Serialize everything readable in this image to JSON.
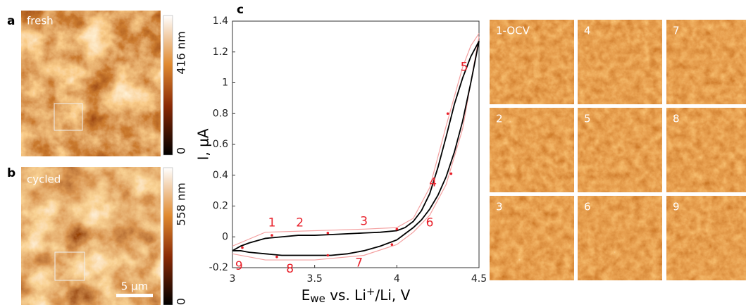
{
  "panels": {
    "a": {
      "label": "a",
      "image_label": "fresh",
      "colorbar_top": "416 nm",
      "colorbar_bottom": "0"
    },
    "b": {
      "label": "b",
      "image_label": "cycled",
      "colorbar_top": "558 nm",
      "colorbar_bottom": "0",
      "scale_bar": "5 μm"
    }
  },
  "chart_data": {
    "type": "line",
    "panel_label": "c",
    "xlabel": [
      "E",
      "we",
      " vs. Li",
      "+",
      "/Li, V"
    ],
    "ylabel": "I, μA",
    "xlim": [
      3,
      4.5
    ],
    "ylim": [
      -0.2,
      1.4
    ],
    "xticks": [
      3,
      3.5,
      4,
      4.5
    ],
    "yticks": [
      -0.2,
      0,
      0.2,
      0.4,
      0.6,
      0.8,
      1,
      1.2,
      1.4
    ],
    "series": [
      {
        "color": "#f4a0a0",
        "x": [
          3,
          3.2,
          3.5,
          3.8,
          4.0,
          4.1,
          4.2,
          4.3,
          4.4,
          4.45,
          4.5
        ],
        "values": [
          -0.06,
          0.03,
          0.04,
          0.05,
          0.06,
          0.12,
          0.32,
          0.72,
          1.1,
          1.24,
          1.32
        ]
      },
      {
        "color": "#f4a0a0",
        "x": [
          4.5,
          4.45,
          4.4,
          4.3,
          4.2,
          4.1,
          4.0,
          3.8,
          3.5,
          3.2,
          3.0
        ],
        "values": [
          1.3,
          1.0,
          0.7,
          0.34,
          0.14,
          0.03,
          -0.05,
          -0.12,
          -0.15,
          -0.15,
          -0.11
        ]
      },
      {
        "color": "#000000",
        "x": [
          3,
          3.05,
          3.1,
          3.2,
          3.3,
          3.4,
          3.5,
          3.6,
          3.7,
          3.8,
          3.9,
          4.0,
          4.05,
          4.1,
          4.15,
          4.2,
          4.25,
          4.3,
          4.35,
          4.4,
          4.45,
          4.5
        ],
        "values": [
          -0.09,
          -0.06,
          -0.04,
          -0.01,
          0,
          0.01,
          0.01,
          0.015,
          0.02,
          0.025,
          0.03,
          0.04,
          0.06,
          0.1,
          0.17,
          0.28,
          0.45,
          0.65,
          0.86,
          1.03,
          1.17,
          1.27
        ]
      },
      {
        "color": "#000000",
        "x": [
          4.5,
          4.45,
          4.4,
          4.35,
          4.3,
          4.25,
          4.2,
          4.15,
          4.1,
          4.05,
          4.0,
          3.9,
          3.8,
          3.7,
          3.6,
          3.5,
          3.4,
          3.3,
          3.2,
          3.1,
          3.05,
          3.0
        ],
        "values": [
          1.27,
          1.0,
          0.75,
          0.55,
          0.39,
          0.27,
          0.18,
          0.11,
          0.06,
          0.02,
          -0.02,
          -0.06,
          -0.09,
          -0.11,
          -0.12,
          -0.12,
          -0.12,
          -0.12,
          -0.11,
          -0.1,
          -0.09,
          -0.09
        ]
      }
    ],
    "points": {
      "color": "#e8202a",
      "x": [
        3.24,
        3.58,
        4.0,
        4.31,
        4.33,
        3.97,
        3.58,
        3.27,
        3.06
      ],
      "values": [
        0.01,
        0.025,
        0.05,
        0.8,
        0.41,
        -0.05,
        -0.12,
        -0.13,
        -0.07
      ]
    },
    "annotations": [
      {
        "text": "1",
        "x": 3.24,
        "y": 0.09
      },
      {
        "text": "2",
        "x": 3.41,
        "y": 0.09
      },
      {
        "text": "3",
        "x": 3.8,
        "y": 0.1
      },
      {
        "text": "4",
        "x": 4.22,
        "y": 0.35
      },
      {
        "text": "5",
        "x": 4.41,
        "y": 1.1
      },
      {
        "text": "6",
        "x": 4.2,
        "y": 0.09
      },
      {
        "text": "7",
        "x": 3.77,
        "y": -0.17
      },
      {
        "text": "8",
        "x": 3.35,
        "y": -0.21
      },
      {
        "text": "9",
        "x": 3.04,
        "y": -0.19
      }
    ]
  },
  "thumbnails": [
    "1-OCV",
    "4",
    "7",
    "2",
    "5",
    "8",
    "3",
    "6",
    "9"
  ]
}
